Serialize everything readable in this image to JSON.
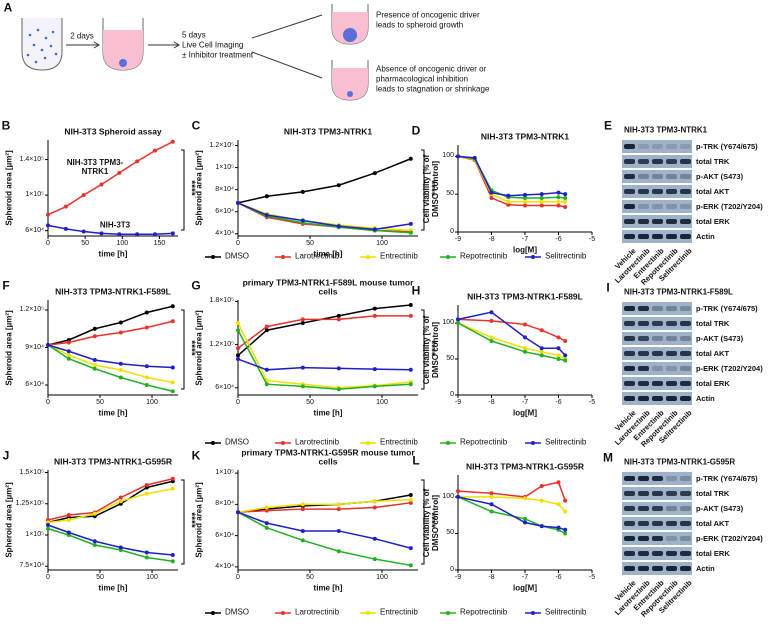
{
  "diagram": {
    "panel": "A",
    "step1": "2 days",
    "step2": [
      "5 days",
      "Live Cell Imaging",
      "± Inhibitor treatment"
    ],
    "outcome1": [
      "Presence of oncogenic driver",
      "leads to spheroid growth"
    ],
    "outcome2": [
      "Absence of oncogenic driver or",
      "pharmacological inhibition",
      "leads to stagnation or shrinkage"
    ]
  },
  "chart_data": [
    {
      "type": "line",
      "panel": "B",
      "title": "NIH-3T3 Spheroid assay",
      "xlabel": "time [h]",
      "ylabel": "Spheroid area [µm²]",
      "x": [
        0,
        24,
        48,
        72,
        96,
        120,
        144,
        168
      ],
      "xlim": [
        0,
        175
      ],
      "xticks": [
        0,
        50,
        100,
        150
      ],
      "ylim": [
        54000,
        162000
      ],
      "yticks": [
        {
          "value": 60000,
          "label": "6×10⁴"
        },
        {
          "value": 100000,
          "label": "1×10⁵"
        },
        {
          "value": 140000,
          "label": "1.4×10⁵"
        }
      ],
      "significance": "****",
      "series": [
        {
          "name": "NIH-3T3 TPM3-NTRK1",
          "color": "#e8322e",
          "values": [
            78000,
            87000,
            100000,
            112000,
            125000,
            138000,
            150000,
            160000
          ]
        },
        {
          "name": "NIH-3T3",
          "color": "#2020c8",
          "values": [
            66000,
            62000,
            59000,
            57000,
            56000,
            56000,
            56000,
            57000
          ]
        }
      ]
    },
    {
      "type": "line",
      "panel": "C",
      "title": "NIH-3T3 TPM3-NTRK1",
      "xlabel": "time [h]",
      "ylabel": "Spheroid area [µm²]",
      "x": [
        0,
        20,
        45,
        70,
        95,
        120
      ],
      "xlim": [
        0,
        125
      ],
      "xticks": [
        0,
        50,
        100
      ],
      "ylim": [
        38000,
        125000
      ],
      "yticks": [
        {
          "value": 40000,
          "label": "4×10⁴"
        },
        {
          "value": 60000,
          "label": "6×10⁴"
        },
        {
          "value": 80000,
          "label": "8×10⁴"
        },
        {
          "value": 100000,
          "label": "1×10⁵"
        },
        {
          "value": 120000,
          "label": "1.2×10⁵"
        }
      ],
      "significance": "****",
      "series": [
        {
          "name": "DMSO",
          "color": "#000000",
          "values": [
            68000,
            74000,
            78000,
            84000,
            95000,
            108000
          ]
        },
        {
          "name": "Larotrectinib",
          "color": "#e8322e",
          "values": [
            68000,
            55000,
            49000,
            46000,
            43000,
            42000
          ]
        },
        {
          "name": "Entrectinib",
          "color": "#f0e000",
          "values": [
            68000,
            58000,
            52000,
            48000,
            45000,
            43000
          ]
        },
        {
          "name": "Repotrectinib",
          "color": "#22b022",
          "values": [
            68000,
            56000,
            50000,
            46000,
            43000,
            41000
          ]
        },
        {
          "name": "Selitrectinib",
          "color": "#2020c8",
          "values": [
            68000,
            57000,
            52000,
            47000,
            44000,
            49000
          ]
        }
      ]
    },
    {
      "type": "line",
      "panel": "D",
      "title": "NIH-3T3 TPM3-NTRK1",
      "xlabel": "log[M]",
      "ylabel": "Cell viability [% of DMSO control]",
      "x": [
        -9,
        -8.5,
        -8,
        -7.5,
        -7,
        -6.5,
        -6,
        -5.8
      ],
      "xlim": [
        -9,
        -5
      ],
      "xticks": [
        -9,
        -8,
        -7,
        -6,
        -5
      ],
      "ylim": [
        0,
        115
      ],
      "yticks": [
        0,
        50,
        100
      ],
      "series": [
        {
          "name": "Larotrectinib",
          "color": "#e8322e",
          "values": [
            100,
            95,
            45,
            36,
            35,
            35,
            35,
            33
          ]
        },
        {
          "name": "Entrectinib",
          "color": "#f0e000",
          "values": [
            100,
            96,
            50,
            40,
            40,
            40,
            40,
            40
          ]
        },
        {
          "name": "Repotrectinib",
          "color": "#22b022",
          "values": [
            100,
            97,
            55,
            46,
            45,
            45,
            46,
            45
          ]
        },
        {
          "name": "Selitrectinib",
          "color": "#2020c8",
          "values": [
            100,
            98,
            52,
            48,
            49,
            50,
            52,
            50
          ]
        }
      ]
    },
    {
      "type": "line",
      "panel": "F",
      "title": "NIH-3T3 TPM3-NTRK1-F589L",
      "xlabel": "time [h]",
      "ylabel": "Spheroid area [µm²]",
      "x": [
        0,
        20,
        45,
        70,
        95,
        120
      ],
      "xlim": [
        0,
        125
      ],
      "xticks": [
        0,
        50,
        100
      ],
      "ylim": [
        52000,
        128000
      ],
      "yticks": [
        {
          "value": 60000,
          "label": "6×10⁴"
        },
        {
          "value": 90000,
          "label": "9×10⁴"
        },
        {
          "value": 120000,
          "label": "1.2×10⁵"
        }
      ],
      "significance": "****",
      "series": [
        {
          "name": "DMSO",
          "color": "#000000",
          "values": [
            92000,
            96000,
            105000,
            110000,
            118000,
            123000
          ]
        },
        {
          "name": "Larotrectinib",
          "color": "#e8322e",
          "values": [
            92000,
            94000,
            99000,
            102000,
            106000,
            111000
          ]
        },
        {
          "name": "Entrectinib",
          "color": "#f0e000",
          "values": [
            92000,
            84000,
            76000,
            72000,
            66000,
            62000
          ]
        },
        {
          "name": "Repotrectinib",
          "color": "#22b022",
          "values": [
            92000,
            81000,
            73000,
            66000,
            60000,
            55000
          ]
        },
        {
          "name": "Selitrectinib",
          "color": "#2020c8",
          "values": [
            92000,
            87000,
            80000,
            77000,
            75000,
            74000
          ]
        }
      ]
    },
    {
      "type": "line",
      "panel": "G",
      "title": "primary TPM3-NTRK1-F589L mouse tumor cells",
      "xlabel": "time [h]",
      "ylabel": "Spheroid area [µm²]",
      "x": [
        0,
        20,
        45,
        70,
        95,
        120
      ],
      "xlim": [
        0,
        125
      ],
      "xticks": [
        0,
        50,
        100
      ],
      "ylim": [
        50000,
        182000
      ],
      "yticks": [
        {
          "value": 60000,
          "label": "6×10⁴"
        },
        {
          "value": 120000,
          "label": "1.2×10⁵"
        },
        {
          "value": 180000,
          "label": "1.8×10⁵"
        }
      ],
      "significance": "****",
      "series": [
        {
          "name": "DMSO",
          "color": "#000000",
          "values": [
            105000,
            140000,
            150000,
            160000,
            170000,
            175000
          ]
        },
        {
          "name": "Larotrectinib",
          "color": "#e8322e",
          "values": [
            115000,
            145000,
            155000,
            155000,
            160000,
            160000
          ]
        },
        {
          "name": "Entrectinib",
          "color": "#f0e000",
          "values": [
            150000,
            70000,
            65000,
            60000,
            63000,
            68000
          ]
        },
        {
          "name": "Repotrectinib",
          "color": "#22b022",
          "values": [
            140000,
            65000,
            62000,
            58000,
            62000,
            65000
          ]
        },
        {
          "name": "Selitrectinib",
          "color": "#2020c8",
          "values": [
            100000,
            85000,
            88000,
            87000,
            86000,
            85000
          ]
        }
      ]
    },
    {
      "type": "line",
      "panel": "H",
      "title": "NIH-3T3 TPM3-NTRK1-F589L",
      "xlabel": "log[M]",
      "ylabel": "Cell viability [% of DMSO control]",
      "x": [
        -9,
        -8,
        -7,
        -6.5,
        -6,
        -5.8
      ],
      "xlim": [
        -9,
        -5
      ],
      "xticks": [
        -9,
        -8,
        -7,
        -6,
        -5
      ],
      "ylim": [
        0,
        125
      ],
      "yticks": [
        0,
        50,
        100
      ],
      "series": [
        {
          "name": "Larotrectinib",
          "color": "#e8322e",
          "values": [
            105,
            103,
            98,
            90,
            80,
            75
          ]
        },
        {
          "name": "Entrectinib",
          "color": "#f0e000",
          "values": [
            100,
            80,
            65,
            60,
            55,
            50
          ]
        },
        {
          "name": "Repotrectinib",
          "color": "#22b022",
          "values": [
            100,
            75,
            60,
            55,
            50,
            48
          ]
        },
        {
          "name": "Selitrectinib",
          "color": "#2020c8",
          "values": [
            105,
            115,
            80,
            65,
            65,
            55
          ]
        }
      ]
    },
    {
      "type": "line",
      "panel": "J",
      "title": "NIH-3T3 TPM3-NTRK1-G595R",
      "xlabel": "time [h]",
      "ylabel": "Spheroid area [µm²]",
      "x": [
        0,
        20,
        45,
        70,
        95,
        120
      ],
      "xlim": [
        0,
        125
      ],
      "xticks": [
        0,
        50,
        100
      ],
      "ylim": [
        72000,
        152000
      ],
      "yticks": [
        {
          "value": 75000,
          "label": "7.5×10⁴"
        },
        {
          "value": 100000,
          "label": "1×10⁵"
        },
        {
          "value": 125000,
          "label": "1.25×10⁵"
        },
        {
          "value": 150000,
          "label": "1.5×10⁵"
        }
      ],
      "significance": "****",
      "series": [
        {
          "name": "DMSO",
          "color": "#000000",
          "values": [
            110000,
            114000,
            115000,
            125000,
            138000,
            143000
          ]
        },
        {
          "name": "Larotrectinib",
          "color": "#e8322e",
          "values": [
            112000,
            116000,
            118000,
            130000,
            140000,
            145000
          ]
        },
        {
          "name": "Entrectinib",
          "color": "#f0e000",
          "values": [
            110000,
            112000,
            117000,
            127000,
            133000,
            137000
          ]
        },
        {
          "name": "Repotrectinib",
          "color": "#22b022",
          "values": [
            105000,
            100000,
            92000,
            88000,
            82000,
            79000
          ]
        },
        {
          "name": "Selitrectinib",
          "color": "#2020c8",
          "values": [
            108000,
            102000,
            95000,
            90000,
            86000,
            84000
          ]
        }
      ]
    },
    {
      "type": "line",
      "panel": "K",
      "title": "primary TPM3-NTRK1-G595R mouse tumor cells",
      "xlabel": "time [h]",
      "ylabel": "Spheroid area [µm²]",
      "x": [
        0,
        20,
        45,
        70,
        95,
        120
      ],
      "xlim": [
        0,
        125
      ],
      "xticks": [
        0,
        50,
        100
      ],
      "ylim": [
        38000,
        102000
      ],
      "yticks": [
        {
          "value": 40000,
          "label": "4×10⁴"
        },
        {
          "value": 60000,
          "label": "6×10⁴"
        },
        {
          "value": 80000,
          "label": "8×10⁴"
        },
        {
          "value": 100000,
          "label": "1×10⁵"
        }
      ],
      "significance": "****",
      "series": [
        {
          "name": "DMSO",
          "color": "#000000",
          "values": [
            75000,
            77000,
            79000,
            80000,
            82000,
            86000
          ]
        },
        {
          "name": "Larotrectinib",
          "color": "#e8322e",
          "values": [
            75000,
            76000,
            77000,
            77000,
            78000,
            81000
          ]
        },
        {
          "name": "Entrectinib",
          "color": "#f0e000",
          "values": [
            75000,
            78000,
            80000,
            80000,
            82000,
            83000
          ]
        },
        {
          "name": "Repotrectinib",
          "color": "#22b022",
          "values": [
            75000,
            65000,
            57000,
            50000,
            45000,
            41000
          ]
        },
        {
          "name": "Selitrectinib",
          "color": "#2020c8",
          "values": [
            75000,
            68000,
            63000,
            63000,
            58000,
            52000
          ]
        }
      ]
    },
    {
      "type": "line",
      "panel": "L",
      "title": "NIH-3T3 TPM3-NTRK1-G595R",
      "xlabel": "log[M]",
      "ylabel": "Cell viability [% of DMSO control]",
      "x": [
        -9,
        -8,
        -7,
        -6.5,
        -6,
        -5.8
      ],
      "xlim": [
        -9,
        -5
      ],
      "xticks": [
        -9,
        -8,
        -7,
        -6,
        -5
      ],
      "ylim": [
        0,
        130
      ],
      "yticks": [
        0,
        50,
        100
      ],
      "series": [
        {
          "name": "Larotrectinib",
          "color": "#e8322e",
          "values": [
            108,
            105,
            100,
            115,
            120,
            95
          ]
        },
        {
          "name": "Entrectinib",
          "color": "#f0e000",
          "values": [
            100,
            100,
            98,
            95,
            90,
            80
          ]
        },
        {
          "name": "Repotrectinib",
          "color": "#22b022",
          "values": [
            100,
            80,
            70,
            60,
            55,
            50
          ]
        },
        {
          "name": "Selitrectinib",
          "color": "#2020c8",
          "values": [
            100,
            90,
            65,
            60,
            58,
            55
          ]
        }
      ]
    }
  ],
  "blots": [
    {
      "panel": "E",
      "title": "NIH-3T3 TPM3-NTRK1",
      "rows": [
        "p-TRK (Y674/675)",
        "total TRK",
        "p-AKT (S473)",
        "total AKT",
        "p-ERK (T202/Y204)",
        "total ERK",
        "Actin"
      ],
      "lanes": [
        "Vehicle",
        "Larotrectinib",
        "Entrectinib",
        "Repotrectinib",
        "Selitrectinib"
      ]
    },
    {
      "panel": "I",
      "title": "NIH-3T3 TPM3-NTRK1-F589L",
      "rows": [
        "p-TRK (Y674/675)",
        "total TRK",
        "p-AKT (S473)",
        "total AKT",
        "p-ERK (T202/Y204)",
        "total ERK",
        "Actin"
      ],
      "lanes": [
        "Vehicle",
        "Larotrectinib",
        "Entrectinib",
        "Repotrectinib",
        "Selitrectinib"
      ]
    },
    {
      "panel": "M",
      "title": "NIH-3T3 TPM3-NTRK1-G595R",
      "rows": [
        "p-TRK (Y674/675)",
        "total TRK",
        "p-AKT (S473)",
        "total AKT",
        "p-ERK (T202/Y204)",
        "total ERK",
        "Actin"
      ],
      "lanes": [
        "Vehicle",
        "Larotrectinib",
        "Entrectinib",
        "Repotrectinib",
        "Selitrectinib"
      ]
    }
  ]
}
